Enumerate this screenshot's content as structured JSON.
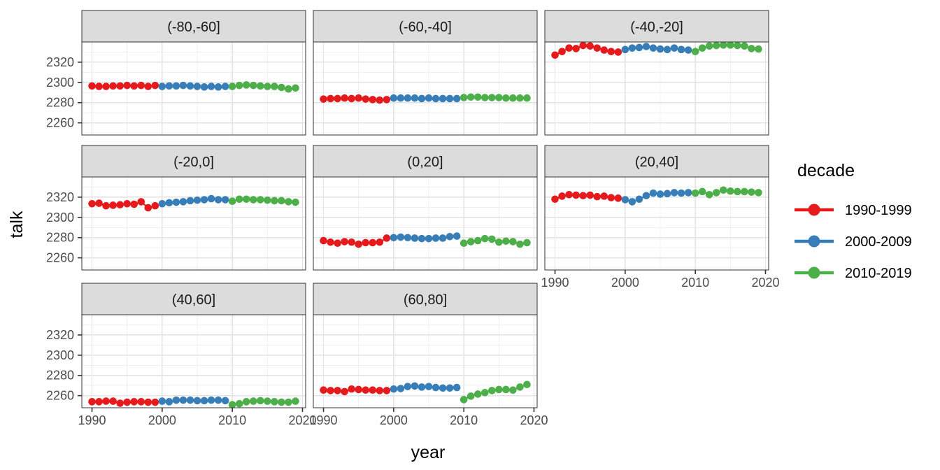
{
  "figure": {
    "xlabel": "year",
    "ylabel": "talk",
    "legend_title": "decade"
  },
  "chart_data": {
    "type": "scatter",
    "title": "",
    "xlabel": "year",
    "ylabel": "talk",
    "legend_title": "decade",
    "legend_position": "right",
    "grid": true,
    "x_ticks": [
      1990,
      2000,
      2010,
      2020
    ],
    "y_ticks": [
      2320,
      2300,
      2280,
      2260
    ],
    "x_minor_ticks": [
      1995,
      2005,
      2015
    ],
    "y_minor_ticks": [
      2330,
      2310,
      2290,
      2270,
      2250
    ],
    "x_range": [
      1988.55,
      2020.45
    ],
    "y_range": [
      2248,
      2340
    ],
    "colors": {
      "red": "#E41A1C",
      "blue": "#377EB8",
      "green": "#4DAF4A",
      "strip_bg": "#DCDCDC",
      "panel_border": "#333333",
      "grid_major": "#E2E2E2",
      "grid_minor": "#F0F0F0",
      "tick_text": "#4d4d4d"
    },
    "series": [
      {
        "name": "1990-1999",
        "color": "#E41A1C",
        "start_year": 1990
      },
      {
        "name": "2000-2009",
        "color": "#377EB8",
        "start_year": 2000
      },
      {
        "name": "2010-2019",
        "color": "#4DAF4A",
        "start_year": 2010
      }
    ],
    "facets": [
      {
        "label": "(-80,-60]",
        "values": {
          "1990-1999": [
            2296.5,
            2296,
            2296,
            2296.5,
            2296.5,
            2297,
            2296.5,
            2297,
            2296,
            2297
          ],
          "2000-2009": [
            2296,
            2296.5,
            2296.5,
            2297,
            2296.5,
            2296,
            2295.5,
            2296,
            2295.5,
            2296
          ],
          "2010-2019": [
            2296,
            2297,
            2297.5,
            2297,
            2296.5,
            2296,
            2296,
            2295,
            2293.5,
            2294.5
          ]
        }
      },
      {
        "label": "(-60,-40]",
        "values": {
          "1990-1999": [
            2283.5,
            2284,
            2284,
            2284.5,
            2284,
            2284.5,
            2283.5,
            2283,
            2282.5,
            2283
          ],
          "2000-2009": [
            2284.5,
            2284.5,
            2284.5,
            2284.5,
            2284,
            2284.5,
            2284,
            2284,
            2284,
            2284
          ],
          "2010-2019": [
            2285,
            2285.5,
            2285.5,
            2285,
            2285,
            2285,
            2284.5,
            2284.5,
            2284.5,
            2284.5
          ]
        }
      },
      {
        "label": "(-40,-20]",
        "values": {
          "1990-1999": [
            2327,
            2330.5,
            2334,
            2333.5,
            2336.5,
            2336,
            2334,
            2332,
            2330.5,
            2330
          ],
          "2000-2009": [
            2332.5,
            2334,
            2334.5,
            2335.5,
            2334,
            2333,
            2332.5,
            2334,
            2332.5,
            2332
          ],
          "2010-2019": [
            2330.5,
            2334,
            2336,
            2336.5,
            2337,
            2337,
            2336.5,
            2336,
            2333.5,
            2333
          ]
        }
      },
      {
        "label": "(-20,0]",
        "values": {
          "1990-1999": [
            2313.5,
            2314,
            2311.5,
            2312,
            2312.5,
            2313.5,
            2313,
            2315.5,
            2309.5,
            2311.5
          ],
          "2000-2009": [
            2313.5,
            2314.5,
            2315,
            2315.5,
            2316.5,
            2317,
            2317.5,
            2318.5,
            2317.5,
            2317.5
          ],
          "2010-2019": [
            2316,
            2318,
            2318,
            2317.5,
            2317.5,
            2317,
            2316.5,
            2316.5,
            2315.5,
            2315
          ]
        }
      },
      {
        "label": "(0,20]",
        "values": {
          "1990-1999": [
            2277,
            2275.5,
            2274.5,
            2276,
            2275.5,
            2273.5,
            2275,
            2275,
            2275.5,
            2279.5
          ],
          "2000-2009": [
            2280,
            2280.5,
            2280,
            2279.5,
            2279,
            2279,
            2279.5,
            2279.5,
            2281,
            2281.5
          ],
          "2010-2019": [
            2274.5,
            2276,
            2277,
            2279,
            2278.5,
            2275.5,
            2276.5,
            2276,
            2273.5,
            2275
          ]
        }
      },
      {
        "label": "(20,40]",
        "values": {
          "1990-1999": [
            2318,
            2321,
            2322.5,
            2322,
            2321.5,
            2322,
            2320.5,
            2321,
            2319.5,
            2319
          ],
          "2000-2009": [
            2317.5,
            2315.5,
            2318,
            2321.5,
            2324,
            2323,
            2323.5,
            2324.5,
            2324,
            2324.5
          ],
          "2010-2019": [
            2324,
            2325.5,
            2322.5,
            2324.5,
            2327,
            2326,
            2325.5,
            2325.5,
            2325,
            2324.5
          ]
        }
      },
      {
        "label": "(40,60]",
        "values": {
          "1990-1999": [
            2254,
            2254,
            2254.5,
            2254.5,
            2252.5,
            2253.5,
            2254,
            2254,
            2253.5,
            2253.5
          ],
          "2000-2009": [
            2254.5,
            2254,
            2255.5,
            2255.5,
            2255.5,
            2255,
            2255,
            2255.5,
            2255.5,
            2255
          ],
          "2010-2019": [
            2251,
            2252,
            2254,
            2254.5,
            2255,
            2254.5,
            2254,
            2253.5,
            2253.5,
            2254.5
          ]
        }
      },
      {
        "label": "(60,80]",
        "values": {
          "1990-1999": [
            2265.5,
            2265,
            2265,
            2264,
            2266.5,
            2266,
            2265.5,
            2265.5,
            2265,
            2265
          ],
          "2000-2009": [
            2266.5,
            2267,
            2269,
            2269.5,
            2268.5,
            2269,
            2268,
            2267.5,
            2267.5,
            2268
          ],
          "2010-2019": [
            2256,
            2259.5,
            2261.5,
            2263,
            2265,
            2266,
            2266,
            2265.5,
            2268.5,
            2271
          ]
        }
      }
    ]
  }
}
